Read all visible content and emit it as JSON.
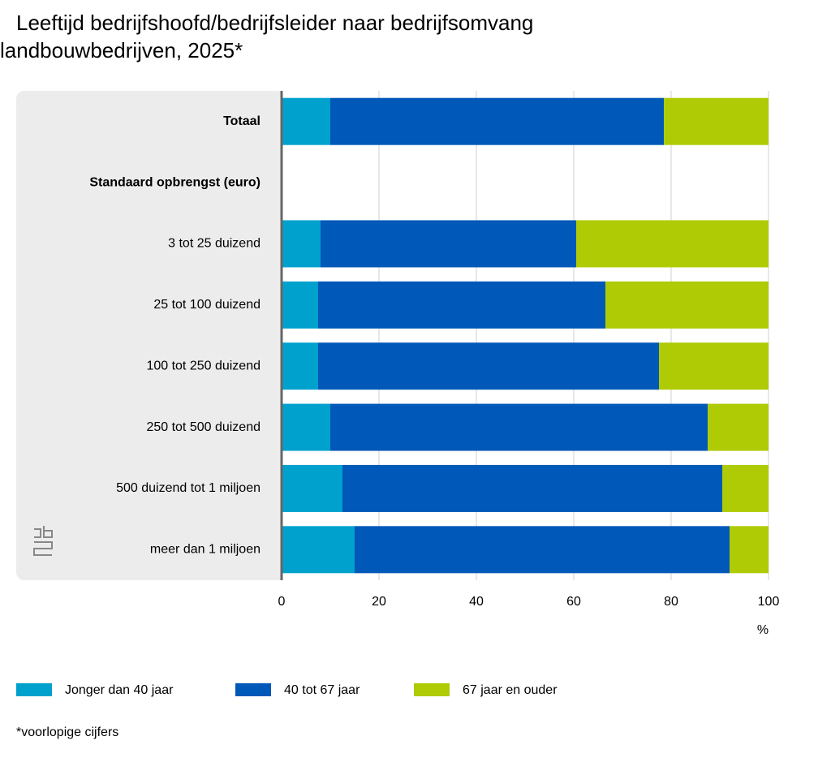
{
  "chart_data": {
    "type": "stacked-barh",
    "title": "Leeftijd bedrijfshoofd/bedrijfsleider naar bedrijfsomvang",
    "subtitle": "landbouwbedrijven, 2025*",
    "categories": [
      "Totaal",
      "Standaard opbrengst (euro)",
      "3 tot 25 duizend",
      "25 tot 100 duizend",
      "100 tot 250 duizend",
      "250 tot 500 duizend",
      "500 duizend tot 1 miljoen",
      "meer dan 1 miljoen"
    ],
    "category_styles": [
      "bold",
      "bold",
      "normal",
      "normal",
      "normal",
      "normal",
      "normal",
      "normal"
    ],
    "series": [
      {
        "name": "Jonger dan 40 jaar",
        "color": "#00a1cd",
        "values": [
          10,
          null,
          8,
          7.5,
          7.5,
          10,
          12.5,
          15
        ]
      },
      {
        "name": "40 tot 67 jaar",
        "color": "#0058b8",
        "values": [
          68.5,
          null,
          52.5,
          59,
          70,
          77.5,
          78,
          77
        ]
      },
      {
        "name": "67 jaar en ouder",
        "color": "#afcb05",
        "values": [
          21.5,
          null,
          39.5,
          33.5,
          22.5,
          12.5,
          9.5,
          8
        ]
      }
    ],
    "xlim": [
      0,
      100
    ],
    "xticks": [
      0,
      20,
      40,
      60,
      80,
      100
    ],
    "xlabel": "%",
    "grid": true,
    "note": "*voorlopige cijfers"
  }
}
